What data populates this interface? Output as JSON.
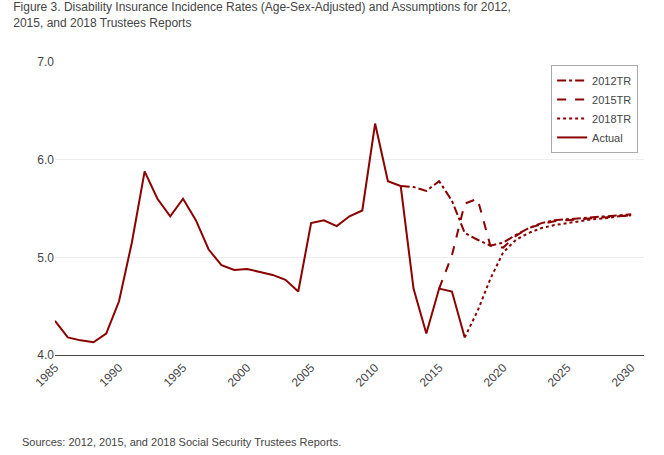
{
  "chart_data": {
    "type": "line",
    "title": [
      "Figure 3. Disability Insurance Incidence Rates (Age-Sex-Adjusted) and Assumptions for 2012,",
      "2015, and 2018 Trustees Reports"
    ],
    "annotations": [
      "Sources: 2012, 2015, and 2018 Social Security Trustees Reports."
    ],
    "xlim": [
      1985,
      2031
    ],
    "ylim": [
      4.0,
      7.0
    ],
    "xticks": [
      1985,
      1990,
      1995,
      2000,
      2005,
      2010,
      2015,
      2020,
      2025,
      2030
    ],
    "yticks": [
      {
        "value": 4.0,
        "label": "4.0"
      },
      {
        "value": 5.0,
        "label": "5.0"
      },
      {
        "value": 6.0,
        "label": "6.0"
      },
      {
        "value": 7.0,
        "label": "7.0"
      }
    ],
    "grid": "y",
    "legend": "upper right",
    "series": [
      {
        "name": "2012TR",
        "color": "#8B0000",
        "line_style": "dashdot",
        "x": [
          2012,
          2013,
          2014,
          2015,
          2016,
          2017,
          2018,
          2019,
          2020,
          2021,
          2022,
          2023,
          2024,
          2025,
          2026,
          2027,
          2028,
          2029,
          2030
        ],
        "values": [
          5.73,
          5.72,
          5.68,
          5.78,
          5.58,
          5.25,
          5.18,
          5.12,
          5.15,
          5.23,
          5.3,
          5.35,
          5.38,
          5.39,
          5.4,
          5.41,
          5.42,
          5.43,
          5.44
        ]
      },
      {
        "name": "2015TR",
        "color": "#8B0000",
        "line_style": "dashed",
        "x": [
          2015,
          2016,
          2017,
          2018,
          2019,
          2020,
          2021,
          2022,
          2023,
          2024,
          2025,
          2026,
          2027,
          2028,
          2029,
          2030
        ],
        "values": [
          4.68,
          5.02,
          5.55,
          5.6,
          5.12,
          5.1,
          5.22,
          5.3,
          5.34,
          5.37,
          5.38,
          5.39,
          5.4,
          5.41,
          5.42,
          5.43
        ]
      },
      {
        "name": "2018TR",
        "color": "#8B0000",
        "line_style": "dotted",
        "x": [
          2017,
          2018,
          2019,
          2020,
          2021,
          2022,
          2023,
          2024,
          2025,
          2026,
          2027,
          2028,
          2029,
          2030
        ],
        "values": [
          4.18,
          4.45,
          4.78,
          5.05,
          5.18,
          5.25,
          5.3,
          5.33,
          5.35,
          5.37,
          5.39,
          5.4,
          5.42,
          5.43
        ]
      },
      {
        "name": "Actual",
        "color": "#8B0000",
        "line_style": "solid",
        "x": [
          1985,
          1986,
          1987,
          1988,
          1989,
          1990,
          1991,
          1992,
          1993,
          1994,
          1995,
          1996,
          1997,
          1998,
          1999,
          2000,
          2001,
          2002,
          2003,
          2004,
          2005,
          2006,
          2007,
          2008,
          2009,
          2010,
          2011,
          2012,
          2013,
          2014,
          2015,
          2016,
          2017
        ],
        "values": [
          4.35,
          4.18,
          4.15,
          4.13,
          4.22,
          4.55,
          5.15,
          5.88,
          5.6,
          5.42,
          5.6,
          5.38,
          5.08,
          4.92,
          4.87,
          4.88,
          4.85,
          4.82,
          4.77,
          4.65,
          5.35,
          5.38,
          5.32,
          5.42,
          5.48,
          6.37,
          5.78,
          5.73,
          4.68,
          4.22,
          4.68,
          4.65,
          4.18
        ]
      }
    ]
  }
}
